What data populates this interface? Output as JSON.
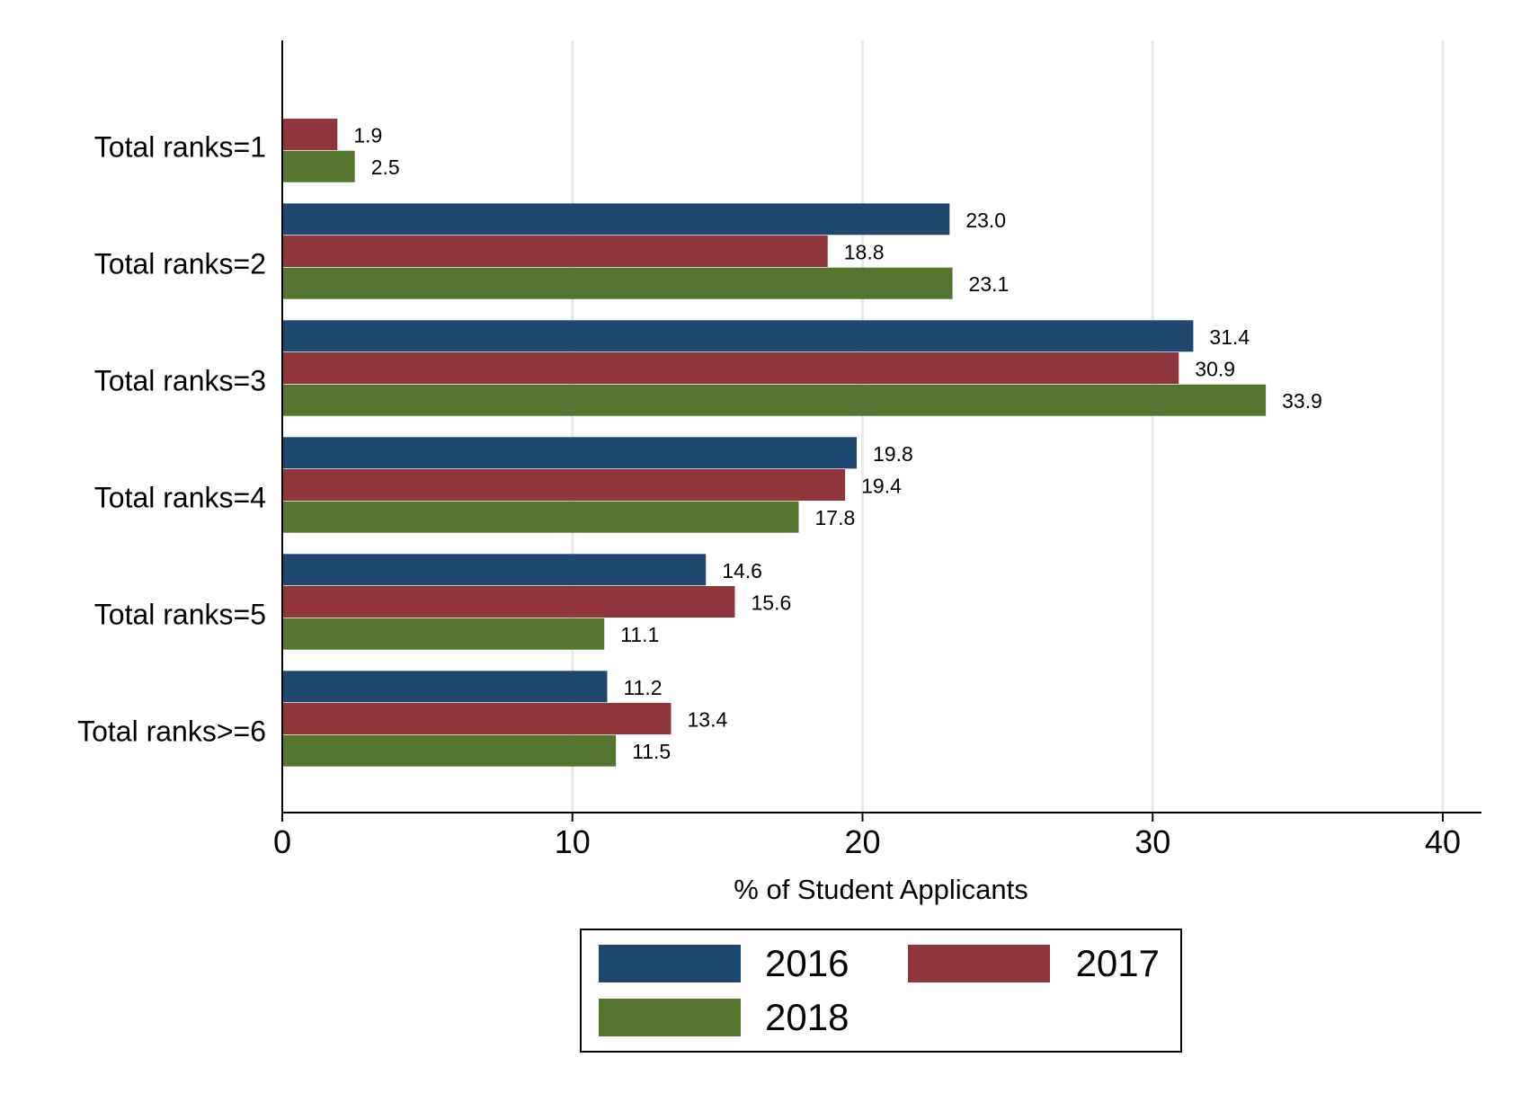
{
  "chart_data": {
    "type": "bar",
    "orientation": "horizontal",
    "title": "",
    "xlabel": "% of Student Applicants",
    "ylabel": "",
    "xlim": [
      0,
      40
    ],
    "xticks": [
      0,
      10,
      20,
      30,
      40
    ],
    "xtick_labels": [
      "0",
      "10",
      "20",
      "30",
      "40"
    ],
    "grid": true,
    "legend_position": "bottom",
    "categories": [
      "Total ranks=1",
      "Total ranks=2",
      "Total ranks=3",
      "Total ranks=4",
      "Total ranks=5",
      "Total ranks>=6"
    ],
    "series": [
      {
        "name": "2016",
        "color": "#1f4871",
        "values": [
          null,
          23.0,
          31.4,
          19.8,
          14.6,
          11.2
        ],
        "labels": [
          null,
          "23.0",
          "31.4",
          "19.8",
          "14.6",
          "11.2"
        ]
      },
      {
        "name": "2017",
        "color": "#90353b",
        "values": [
          1.9,
          18.8,
          30.9,
          19.4,
          15.6,
          13.4
        ],
        "labels": [
          "1.9",
          "18.8",
          "30.9",
          "19.4",
          "15.6",
          "13.4"
        ]
      },
      {
        "name": "2018",
        "color": "#55752f",
        "values": [
          2.5,
          23.1,
          33.9,
          17.8,
          11.1,
          11.5
        ],
        "labels": [
          "2.5",
          "23.1",
          "33.9",
          "17.8",
          "11.1",
          "11.5"
        ]
      }
    ]
  }
}
